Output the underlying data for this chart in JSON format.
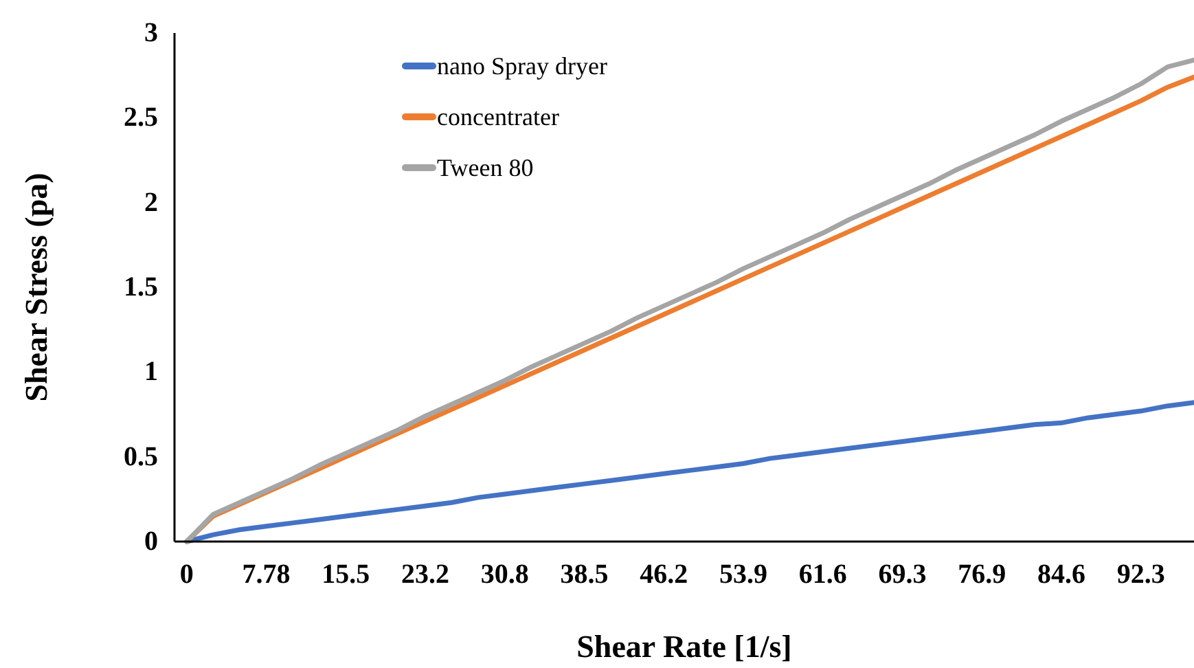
{
  "chart_data": {
    "type": "line",
    "xlabel": "Shear Rate [1/s]",
    "ylabel": "Shear Stress (pa)",
    "categories": [
      "0",
      null,
      null,
      "7.78",
      null,
      null,
      "15.5",
      null,
      null,
      "23.2",
      null,
      null,
      "30.8",
      null,
      null,
      "38.5",
      null,
      null,
      "46.2",
      null,
      null,
      "53.9",
      null,
      null,
      "61.6",
      null,
      null,
      "69.3",
      null,
      null,
      "76.9",
      null,
      null,
      "84.6",
      null,
      null,
      "92.3",
      null,
      null
    ],
    "ylim": [
      0,
      3
    ],
    "yticks": [
      0,
      0.5,
      1,
      1.5,
      2,
      2.5,
      3
    ],
    "grid": false,
    "legend": "top left",
    "marker": "none",
    "line_style": "solid",
    "series": [
      {
        "name": "nano Spray dryer",
        "color": "#4472c4",
        "values": [
          0,
          0.04,
          0.07,
          0.09,
          0.11,
          0.13,
          0.15,
          0.17,
          0.19,
          0.21,
          0.23,
          0.26,
          0.28,
          0.3,
          0.32,
          0.34,
          0.36,
          0.38,
          0.4,
          0.42,
          0.44,
          0.46,
          0.49,
          0.51,
          0.53,
          0.55,
          0.57,
          0.59,
          0.61,
          0.63,
          0.65,
          0.67,
          0.69,
          0.7,
          0.73,
          0.75,
          0.77,
          0.8,
          0.82
        ]
      },
      {
        "name": "concentrater",
        "color": "#ed7d31",
        "values": [
          0,
          0.15,
          0.22,
          0.29,
          0.36,
          0.43,
          0.5,
          0.57,
          0.64,
          0.71,
          0.78,
          0.85,
          0.92,
          0.99,
          1.06,
          1.13,
          1.2,
          1.27,
          1.34,
          1.41,
          1.48,
          1.55,
          1.62,
          1.69,
          1.76,
          1.83,
          1.9,
          1.97,
          2.04,
          2.11,
          2.18,
          2.25,
          2.32,
          2.39,
          2.46,
          2.53,
          2.6,
          2.68,
          2.74
        ]
      },
      {
        "name": "Tween 80",
        "color": "#a5a5a5",
        "values": [
          0,
          0.16,
          0.23,
          0.3,
          0.37,
          0.45,
          0.52,
          0.59,
          0.66,
          0.74,
          0.81,
          0.88,
          0.95,
          1.03,
          1.1,
          1.17,
          1.24,
          1.32,
          1.39,
          1.46,
          1.53,
          1.61,
          1.68,
          1.75,
          1.82,
          1.9,
          1.97,
          2.04,
          2.11,
          2.19,
          2.26,
          2.33,
          2.4,
          2.48,
          2.55,
          2.62,
          2.7,
          2.8,
          2.84
        ]
      }
    ]
  }
}
